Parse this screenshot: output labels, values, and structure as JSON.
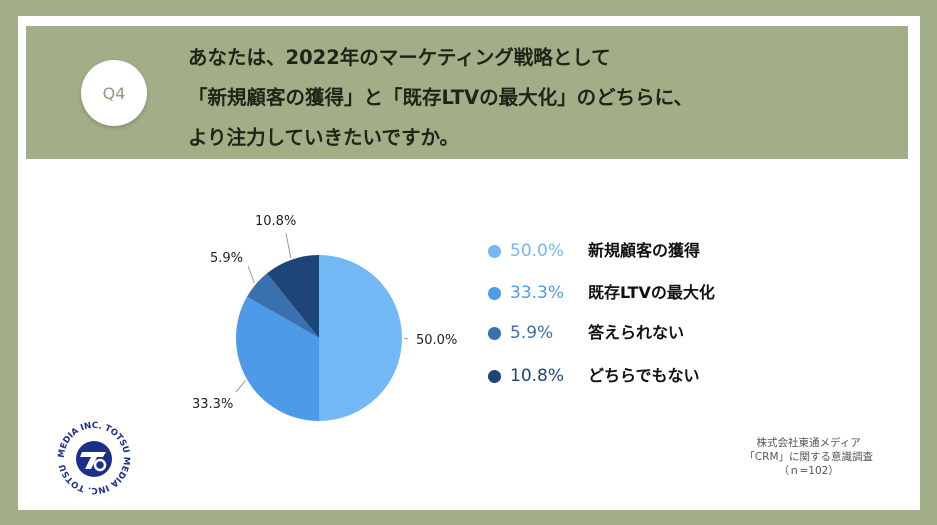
{
  "question": {
    "badge": "Q4",
    "lines": [
      "あなたは、2022年のマーケティング戦略として",
      "「新規顧客の獲得」と「既存LTVの最大化」のどちらに、",
      "より注力していきたいですか。"
    ]
  },
  "colors": {
    "background": "#a1ae88",
    "slice_1": "#72b8f5",
    "slice_2": "#4d9be8",
    "slice_3": "#3a6fb0",
    "slice_4": "#1e4578"
  },
  "chart_data": {
    "type": "pie",
    "categories": [
      "新規顧客の獲得",
      "既存LTVの最大化",
      "答えられない",
      "どちらでもない"
    ],
    "values": [
      50.0,
      33.3,
      5.9,
      10.8
    ],
    "value_labels": [
      "50.0%",
      "33.3%",
      "5.9%",
      "10.8%"
    ],
    "legend_placement": "right"
  },
  "legend": [
    {
      "pct": "50.0%",
      "label": "新規顧客の獲得"
    },
    {
      "pct": "33.3%",
      "label": "既存LTVの最大化"
    },
    {
      "pct": "5.9%",
      "label": "答えられない"
    },
    {
      "pct": "10.8%",
      "label": "どちらでもない"
    }
  ],
  "logo": {
    "text": "MEDIA INC. TOTSU MEDIA INC. TOTSU",
    "icon": "totsu-logo-icon"
  },
  "credit": {
    "line1": "株式会社東通メディア",
    "line2": "「CRM」に関する意識調査",
    "line3": "（ｎ=102）"
  }
}
